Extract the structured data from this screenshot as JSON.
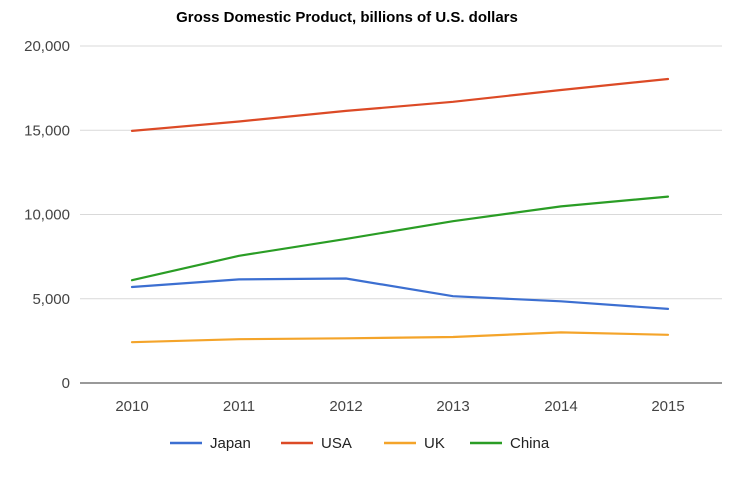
{
  "chart_data": {
    "type": "line",
    "title": "Gross Domestic Product, billions of U.S. dollars",
    "xlabel": "",
    "ylabel": "",
    "x": [
      "2010",
      "2011",
      "2012",
      "2013",
      "2014",
      "2015"
    ],
    "ylim": [
      0,
      20000
    ],
    "yticks": [
      "0",
      "5,000",
      "10,000",
      "15,000",
      "20,000"
    ],
    "grid": true,
    "legend_position": "bottom",
    "series": [
      {
        "name": "Japan",
        "color": "#3c6fd1",
        "values": [
          5700,
          6150,
          6200,
          5150,
          4850,
          4400
        ]
      },
      {
        "name": "USA",
        "color": "#dc4a26",
        "values": [
          14960,
          15520,
          16150,
          16690,
          17390,
          18040
        ]
      },
      {
        "name": "UK",
        "color": "#f4a42a",
        "values": [
          2420,
          2600,
          2650,
          2730,
          3000,
          2860
        ]
      },
      {
        "name": "China",
        "color": "#2a9d25",
        "values": [
          6100,
          7550,
          8550,
          9600,
          10480,
          11060
        ]
      }
    ]
  }
}
